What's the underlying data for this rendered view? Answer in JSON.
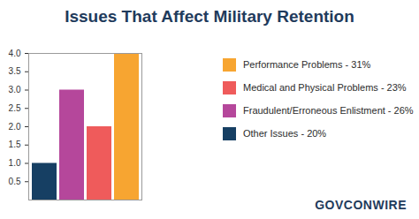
{
  "chart_data": {
    "type": "bar",
    "title": "Issues That Affect Military Retention",
    "categories": [
      "Other Issues - 20%",
      "Fraudulent/Erroneous Enlistment - 26%",
      "Medical and Physical Problems - 23%",
      "Performance Problems - 31%"
    ],
    "values": [
      1,
      3,
      2,
      4
    ],
    "colors": [
      "#163f63",
      "#b5479b",
      "#ef5b5b",
      "#f7a531"
    ],
    "ylim": [
      0,
      4
    ],
    "yticks": [
      0.5,
      {
        "value": 1,
        "label": "1.0"
      },
      1.5,
      {
        "value": 2,
        "label": "2.0"
      },
      2.5,
      {
        "value": 3,
        "label": "3.0"
      },
      3.5,
      {
        "value": 4,
        "label": "4.0"
      }
    ],
    "grid": false,
    "legend": "right",
    "tick_labels": "y",
    "annotations": [
      "GOVCONWIRE"
    ]
  }
}
